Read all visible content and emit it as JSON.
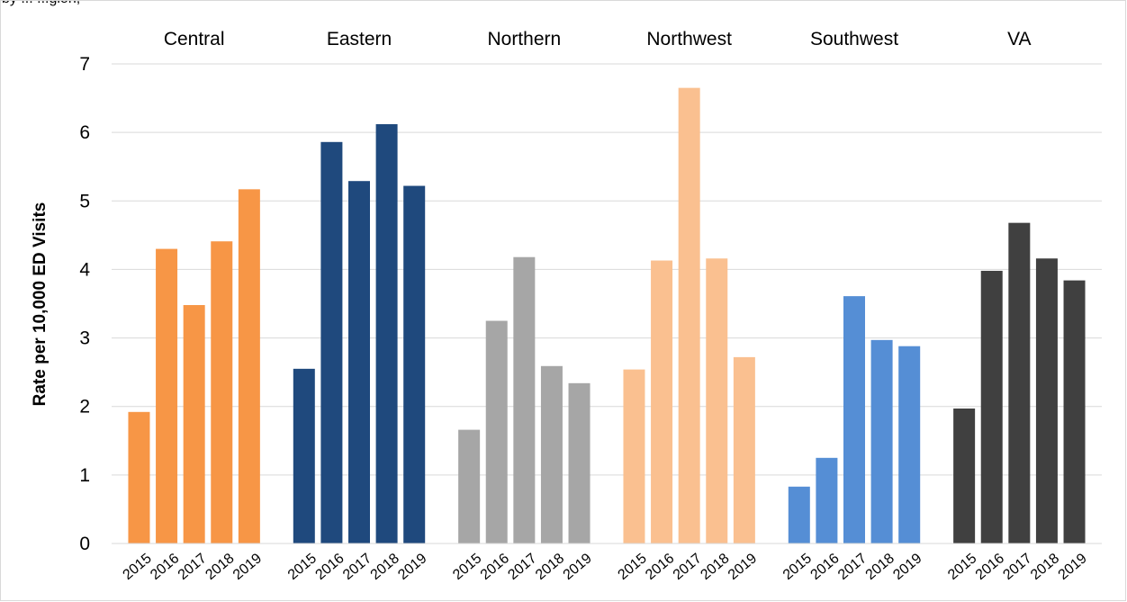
{
  "caption_fragment": "by ... ...gion,",
  "chart_data": {
    "type": "bar",
    "ylabel": "Rate per 10,000 ED Visits",
    "xlabel": "",
    "ylim": [
      0,
      7
    ],
    "yticks": [
      "0",
      "1",
      "2",
      "3",
      "4",
      "5",
      "6",
      "7"
    ],
    "grid": true,
    "legend": "none",
    "categories": [
      "2015",
      "2016",
      "2017",
      "2018",
      "2019"
    ],
    "series": [
      {
        "name": "Central",
        "color": "#F79646",
        "values": [
          1.92,
          4.3,
          3.48,
          4.41,
          5.17
        ]
      },
      {
        "name": "Eastern",
        "color": "#1F497D",
        "values": [
          2.55,
          5.86,
          5.29,
          6.12,
          5.22
        ]
      },
      {
        "name": "Northern",
        "color": "#A6A6A6",
        "values": [
          1.66,
          3.25,
          4.18,
          2.59,
          2.34
        ]
      },
      {
        "name": "Northwest",
        "color": "#FAC090",
        "values": [
          2.54,
          4.13,
          6.65,
          4.16,
          2.72
        ]
      },
      {
        "name": "Southwest",
        "color": "#558ED5",
        "values": [
          0.83,
          1.25,
          3.61,
          2.97,
          2.88
        ]
      },
      {
        "name": "VA",
        "color": "#404040",
        "values": [
          1.97,
          3.98,
          4.68,
          4.16,
          3.84
        ]
      }
    ]
  }
}
